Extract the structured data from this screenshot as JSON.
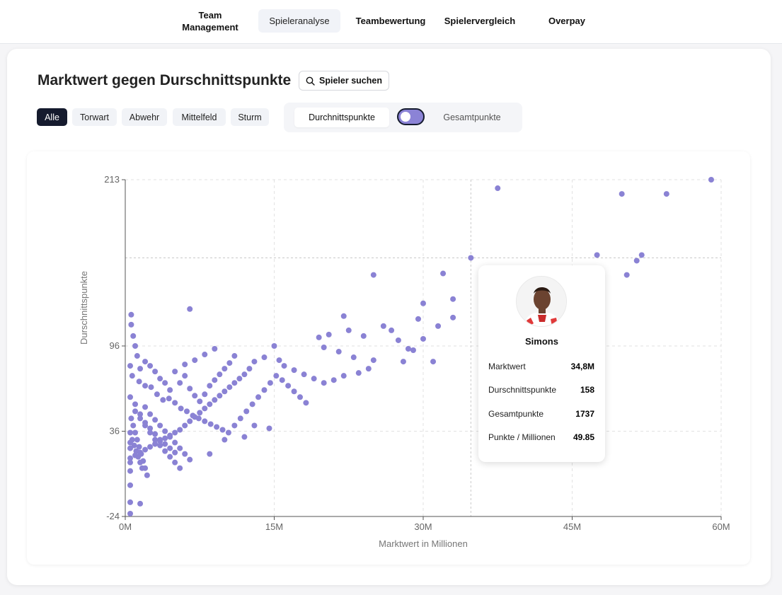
{
  "nav": {
    "items": [
      {
        "label": "Team\nManagement",
        "active": false
      },
      {
        "label": "Spieleranalyse",
        "active": true
      },
      {
        "label": "Teambewertung",
        "active": false
      },
      {
        "label": "Spielervergleich",
        "active": false
      },
      {
        "label": "Overpay",
        "active": false
      }
    ]
  },
  "header": {
    "title": "Marktwert gegen Durschnittspunkte",
    "search_label": "Spieler suchen"
  },
  "filters": {
    "positions": [
      "Alle",
      "Torwart",
      "Abwehr",
      "Mittelfeld",
      "Sturm"
    ],
    "selected": "Alle"
  },
  "metric_toggle": {
    "left_label": "Durchnittspunkte",
    "right_label": "Gesamtpunkte",
    "selected": "left"
  },
  "tooltip": {
    "name": "Simons",
    "rows": [
      {
        "label": "Marktwert",
        "value": "34,8M"
      },
      {
        "label": "Durschnittspunkte",
        "value": "158"
      },
      {
        "label": "Gesamtpunkte",
        "value": "1737"
      },
      {
        "label": "Punkte / Millionen",
        "value": "49.85"
      }
    ]
  },
  "chart_data": {
    "type": "scatter",
    "xlabel": "Marktwert in Millionen",
    "ylabel": "Durschnittspunkte",
    "xlim": [
      0,
      60
    ],
    "ylim": [
      -24,
      213
    ],
    "x_ticks": [
      "0M",
      "15M",
      "30M",
      "45M",
      "60M"
    ],
    "y_ticks": [
      "-24",
      "36",
      "96",
      "213"
    ],
    "grid": true,
    "point_color": "#8a82d4",
    "highlight": {
      "x": 34.8,
      "y": 158
    },
    "points": [
      [
        59,
        213
      ],
      [
        37.5,
        207
      ],
      [
        50,
        203
      ],
      [
        54.5,
        203
      ],
      [
        47.5,
        160
      ],
      [
        52,
        160
      ],
      [
        51.5,
        156
      ],
      [
        50.5,
        146
      ],
      [
        34.8,
        158
      ],
      [
        32,
        147
      ],
      [
        25,
        146
      ],
      [
        33,
        129
      ],
      [
        30,
        126
      ],
      [
        29.5,
        115
      ],
      [
        31.5,
        110
      ],
      [
        33,
        116
      ],
      [
        22,
        117
      ],
      [
        20.5,
        104
      ],
      [
        22.5,
        107
      ],
      [
        26,
        110
      ],
      [
        26.8,
        107
      ],
      [
        24,
        103
      ],
      [
        19.5,
        102
      ],
      [
        15,
        96
      ],
      [
        20,
        95
      ],
      [
        21.5,
        92
      ],
      [
        23,
        88
      ],
      [
        27.5,
        100
      ],
      [
        28.5,
        94
      ],
      [
        29,
        93
      ],
      [
        30,
        101
      ],
      [
        28,
        85
      ],
      [
        31,
        85
      ],
      [
        25,
        86
      ],
      [
        24.5,
        80
      ],
      [
        23.5,
        77
      ],
      [
        22,
        75
      ],
      [
        21,
        72
      ],
      [
        20,
        70
      ],
      [
        19,
        73
      ],
      [
        18,
        76
      ],
      [
        17,
        79
      ],
      [
        16,
        82
      ],
      [
        15.5,
        86
      ],
      [
        14,
        88
      ],
      [
        13,
        85
      ],
      [
        12.5,
        80
      ],
      [
        12,
        76
      ],
      [
        11.5,
        73
      ],
      [
        11,
        70
      ],
      [
        10.5,
        67
      ],
      [
        10,
        64
      ],
      [
        9.5,
        61
      ],
      [
        9,
        58
      ],
      [
        8.5,
        55
      ],
      [
        8,
        52
      ],
      [
        7.5,
        49
      ],
      [
        7,
        46
      ],
      [
        6.5,
        43
      ],
      [
        6,
        40
      ],
      [
        5.5,
        37
      ],
      [
        5,
        35
      ],
      [
        4.5,
        33
      ],
      [
        4,
        31
      ],
      [
        3.5,
        29
      ],
      [
        3,
        27
      ],
      [
        2.5,
        25
      ],
      [
        2,
        23
      ],
      [
        1.5,
        21
      ],
      [
        1,
        19
      ],
      [
        0.5,
        17
      ],
      [
        0.5,
        8
      ],
      [
        0.5,
        -2
      ],
      [
        0.5,
        -14
      ],
      [
        0.5,
        -22
      ],
      [
        0.6,
        118
      ],
      [
        0.6,
        111
      ],
      [
        0.8,
        103
      ],
      [
        1,
        96
      ],
      [
        1.2,
        89
      ],
      [
        0.5,
        82
      ],
      [
        0.7,
        75
      ],
      [
        1.4,
        71
      ],
      [
        2,
        68
      ],
      [
        2.6,
        67
      ],
      [
        3.2,
        62
      ],
      [
        3.8,
        58
      ],
      [
        4.4,
        59
      ],
      [
        5,
        56
      ],
      [
        5.6,
        52
      ],
      [
        6.2,
        50
      ],
      [
        6.8,
        47
      ],
      [
        7.4,
        45
      ],
      [
        8,
        43
      ],
      [
        8.6,
        41
      ],
      [
        9.2,
        39
      ],
      [
        9.8,
        37
      ],
      [
        10.4,
        35
      ],
      [
        11,
        40
      ],
      [
        11.6,
        45
      ],
      [
        12.2,
        50
      ],
      [
        12.8,
        55
      ],
      [
        13.4,
        60
      ],
      [
        14,
        65
      ],
      [
        14.6,
        70
      ],
      [
        15.2,
        75
      ],
      [
        15.8,
        72
      ],
      [
        16.4,
        68
      ],
      [
        17,
        64
      ],
      [
        17.6,
        60
      ],
      [
        18.2,
        56
      ],
      [
        2,
        53
      ],
      [
        2.5,
        48
      ],
      [
        3,
        44
      ],
      [
        3.5,
        40
      ],
      [
        4,
        36
      ],
      [
        4.5,
        32
      ],
      [
        5,
        28
      ],
      [
        5.5,
        24
      ],
      [
        6,
        20
      ],
      [
        6.5,
        16
      ],
      [
        1,
        50
      ],
      [
        1.5,
        45
      ],
      [
        2,
        40
      ],
      [
        2.5,
        35
      ],
      [
        3,
        30
      ],
      [
        3.5,
        26
      ],
      [
        4,
        22
      ],
      [
        4.5,
        18
      ],
      [
        5,
        14
      ],
      [
        5.5,
        10
      ],
      [
        0.5,
        60
      ],
      [
        1,
        55
      ],
      [
        1.5,
        48
      ],
      [
        2,
        42
      ],
      [
        2.5,
        38
      ],
      [
        3,
        34
      ],
      [
        3.5,
        30
      ],
      [
        4,
        27
      ],
      [
        4.5,
        24
      ],
      [
        5,
        21
      ],
      [
        0.6,
        45
      ],
      [
        0.8,
        40
      ],
      [
        1,
        35
      ],
      [
        1.2,
        30
      ],
      [
        1.4,
        25
      ],
      [
        1.6,
        20
      ],
      [
        1.8,
        15
      ],
      [
        2,
        10
      ],
      [
        2.2,
        5
      ],
      [
        1.5,
        -15
      ],
      [
        0.7,
        30
      ],
      [
        0.9,
        26
      ],
      [
        1.1,
        22
      ],
      [
        1.3,
        18
      ],
      [
        1.5,
        14
      ],
      [
        1.7,
        10
      ],
      [
        0.5,
        35
      ],
      [
        0.5,
        28
      ],
      [
        0.5,
        24
      ],
      [
        0.5,
        14
      ],
      [
        6.5,
        66
      ],
      [
        7,
        61
      ],
      [
        7.5,
        57
      ],
      [
        8,
        62
      ],
      [
        8.5,
        68
      ],
      [
        9,
        72
      ],
      [
        9.5,
        76
      ],
      [
        10,
        80
      ],
      [
        10.5,
        84
      ],
      [
        11,
        89
      ],
      [
        5.5,
        70
      ],
      [
        6,
        75
      ],
      [
        4.5,
        65
      ],
      [
        4,
        70
      ],
      [
        3.5,
        73
      ],
      [
        3,
        78
      ],
      [
        2.5,
        82
      ],
      [
        2,
        85
      ],
      [
        1.5,
        80
      ],
      [
        6.5,
        122
      ],
      [
        8.5,
        20
      ],
      [
        10,
        30
      ],
      [
        12,
        32
      ],
      [
        13,
        40
      ],
      [
        14.5,
        38
      ],
      [
        9,
        94
      ],
      [
        8,
        90
      ],
      [
        7,
        86
      ],
      [
        6,
        83
      ],
      [
        5,
        78
      ]
    ]
  }
}
